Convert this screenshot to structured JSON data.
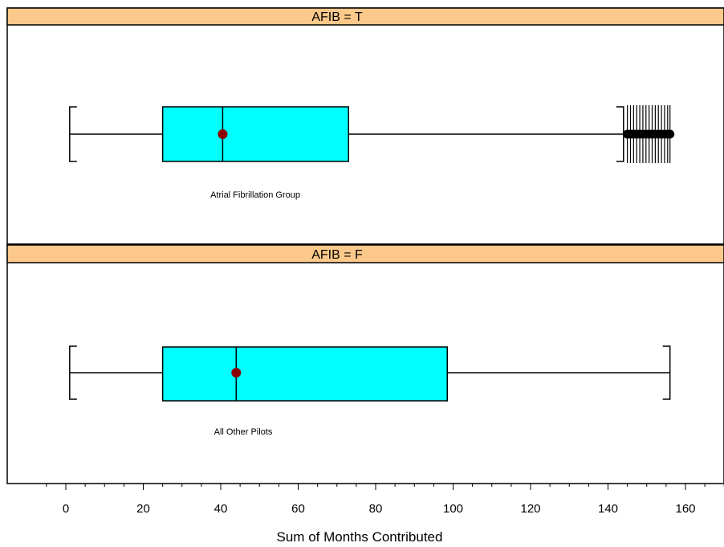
{
  "chart_data": {
    "type": "boxplot",
    "xlabel": "Sum of Months Contributed",
    "xlim": [
      -10,
      170
    ],
    "x_ticks": [
      0,
      20,
      40,
      60,
      80,
      100,
      120,
      140,
      160
    ],
    "x_tick_labels": [
      "0",
      "20",
      "40",
      "60",
      "80",
      "100",
      "120",
      "140",
      "160"
    ],
    "x_minor_step": 5,
    "colors": {
      "strip": "#fcc98a",
      "box_fill": "#00ffff",
      "mean_marker": "#8b0000",
      "lines": "#000000"
    },
    "panels": [
      {
        "strip_label": "AFIB = T",
        "group_label": "Atrial Fibrillation Group",
        "whisker_low": 1,
        "q1": 25,
        "median": 40.5,
        "mean": 40.5,
        "q3": 73,
        "whisker_high": 144,
        "outliers": [
          145,
          145.8,
          146.6,
          147.4,
          148.2,
          149,
          149.8,
          150.6,
          151.4,
          152.2,
          153,
          153.8,
          154.6,
          155.4,
          156
        ]
      },
      {
        "strip_label": "AFIB = F",
        "group_label": "All Other Pilots",
        "whisker_low": 1,
        "q1": 25,
        "median": 44,
        "mean": 44,
        "q3": 98.5,
        "whisker_high": 156,
        "outliers": []
      }
    ]
  }
}
